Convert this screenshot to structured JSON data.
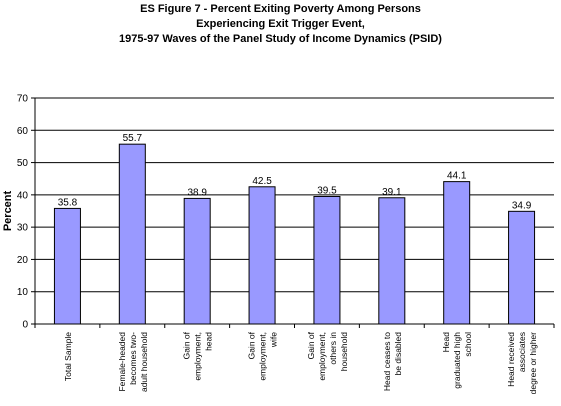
{
  "chart_data": {
    "type": "bar",
    "title_lines": [
      "ES Figure 7 - Percent Exiting Poverty Among Persons",
      "Experiencing Exit Trigger Event,",
      "1975-97 Waves of the Panel Study of Income Dynamics (PSID)"
    ],
    "ylabel": "Percent",
    "ylim": [
      0,
      70
    ],
    "yticks": [
      0,
      10,
      20,
      30,
      40,
      50,
      60,
      70
    ],
    "grid": true,
    "legend": "none",
    "bar_color": "#9999ff",
    "categories": [
      [
        "Total Sample"
      ],
      [
        "Female-headed",
        "becomes two-",
        "adult household"
      ],
      [
        "Gain of",
        "employment,",
        "head"
      ],
      [
        "Gain of",
        "employment,",
        "wife"
      ],
      [
        "Gain of",
        "employment,",
        "others in",
        "household"
      ],
      [
        "Head ceases to",
        "be disabled"
      ],
      [
        "Head",
        "graduated high",
        "school"
      ],
      [
        "Head received",
        "associates",
        "degree or higher"
      ]
    ],
    "values": [
      35.8,
      55.7,
      38.9,
      42.5,
      39.5,
      39.1,
      44.1,
      34.9
    ],
    "data_labels": [
      "35.8",
      "55.7",
      "38.9",
      "42.5",
      "39.5",
      "39.1",
      "44.1",
      "34.9"
    ]
  }
}
